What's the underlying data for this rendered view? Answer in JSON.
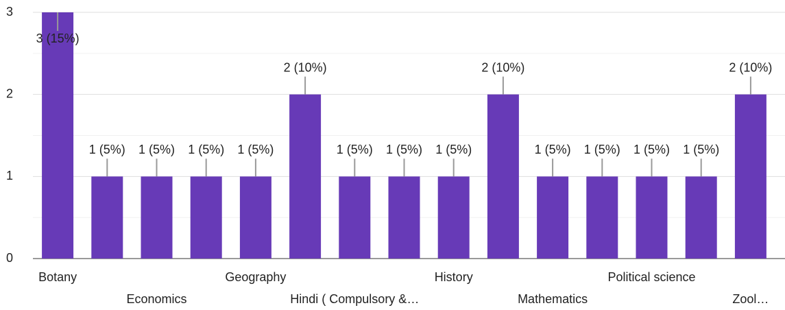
{
  "chart_data": {
    "type": "bar",
    "categories": [
      "Botany",
      null,
      "Economics",
      null,
      "Geography",
      null,
      "Hindi ( Compulsory &…",
      null,
      "History",
      null,
      "Mathematics",
      null,
      "Political science",
      null,
      "Zool…"
    ],
    "values": [
      3,
      1,
      1,
      1,
      1,
      2,
      1,
      1,
      1,
      2,
      1,
      1,
      1,
      1,
      2
    ],
    "value_labels": [
      "3 (15%)",
      "1 (5%)",
      "1 (5%)",
      "1 (5%)",
      "1 (5%)",
      "2 (10%)",
      "1 (5%)",
      "1 (5%)",
      "1 (5%)",
      "2 (10%)",
      "1 (5%)",
      "1 (5%)",
      "1 (5%)",
      "1 (5%)",
      "2 (10%)"
    ],
    "color": "#673ab7",
    "ylim": [
      0,
      3
    ],
    "yticks": [
      0,
      1,
      2,
      3
    ],
    "grid": true
  }
}
